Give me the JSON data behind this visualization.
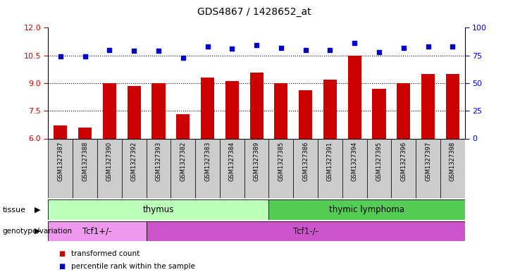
{
  "title": "GDS4867 / 1428652_at",
  "samples": [
    "GSM1327387",
    "GSM1327388",
    "GSM1327390",
    "GSM1327392",
    "GSM1327393",
    "GSM1327382",
    "GSM1327383",
    "GSM1327384",
    "GSM1327389",
    "GSM1327385",
    "GSM1327386",
    "GSM1327391",
    "GSM1327394",
    "GSM1327395",
    "GSM1327396",
    "GSM1327397",
    "GSM1327398"
  ],
  "transformed_count": [
    6.7,
    6.6,
    9.0,
    8.85,
    9.0,
    7.3,
    9.3,
    9.1,
    9.55,
    9.0,
    8.6,
    9.2,
    10.5,
    8.7,
    9.0,
    9.5,
    9.5
  ],
  "percentile_rank": [
    74,
    74,
    80,
    79,
    79,
    73,
    83,
    81,
    84,
    82,
    80,
    80,
    86,
    78,
    82,
    83,
    83
  ],
  "ylim_left": [
    6,
    12
  ],
  "ylim_right": [
    0,
    100
  ],
  "yticks_left": [
    6,
    7.5,
    9,
    10.5,
    12
  ],
  "yticks_right": [
    0,
    25,
    50,
    75,
    100
  ],
  "bar_color": "#cc0000",
  "dot_color": "#0000cc",
  "tissue_groups": [
    {
      "label": "thymus",
      "start": 0,
      "end": 9,
      "color": "#bbffbb"
    },
    {
      "label": "thymic lymphoma",
      "start": 9,
      "end": 17,
      "color": "#55cc55"
    }
  ],
  "genotype_groups": [
    {
      "label": "Tcf1+/-",
      "start": 0,
      "end": 4,
      "color": "#ee99ee"
    },
    {
      "label": "Tcf1-/-",
      "start": 4,
      "end": 17,
      "color": "#cc55cc"
    }
  ],
  "tissue_label": "tissue",
  "genotype_label": "genotype/variation",
  "legend_items": [
    {
      "label": "transformed count",
      "color": "#cc0000"
    },
    {
      "label": "percentile rank within the sample",
      "color": "#0000cc"
    }
  ],
  "bar_width": 0.55,
  "tick_bg_color": "#cccccc",
  "spine_color": "#000000"
}
